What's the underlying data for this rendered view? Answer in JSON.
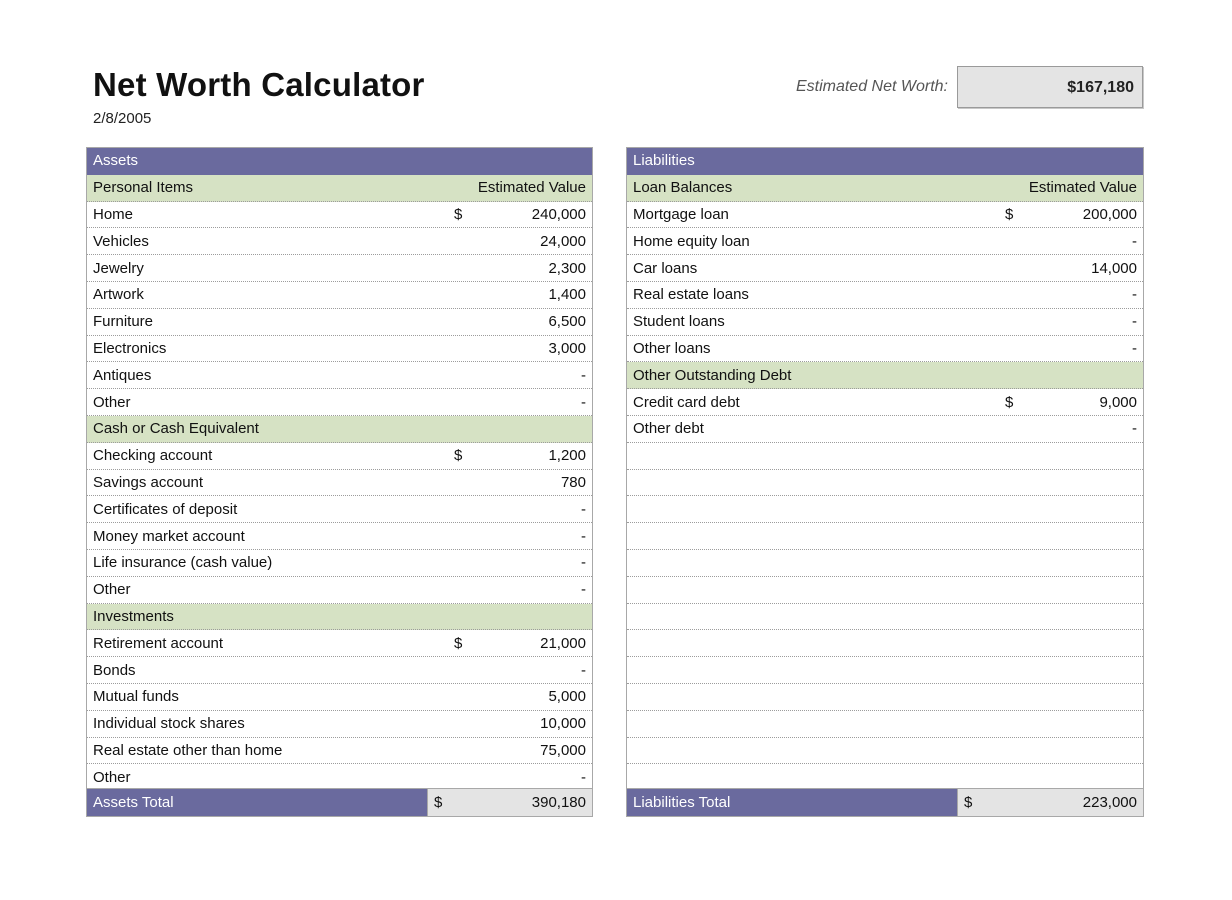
{
  "header": {
    "title": "Net Worth Calculator",
    "date": "2/8/2005",
    "net_worth_label": "Estimated Net Worth:",
    "net_worth_value": "$167,180"
  },
  "assets": {
    "header": "Assets",
    "sections": [
      {
        "title": "Personal Items",
        "column_header": "Estimated Value",
        "items": [
          {
            "label": "Home",
            "currency": "$",
            "value": "240,000"
          },
          {
            "label": "Vehicles",
            "currency": "",
            "value": "24,000"
          },
          {
            "label": "Jewelry",
            "currency": "",
            "value": "2,300"
          },
          {
            "label": "Artwork",
            "currency": "",
            "value": "1,400"
          },
          {
            "label": "Furniture",
            "currency": "",
            "value": "6,500"
          },
          {
            "label": "Electronics",
            "currency": "",
            "value": "3,000"
          },
          {
            "label": "Antiques",
            "currency": "",
            "value": "-"
          },
          {
            "label": "Other",
            "currency": "",
            "value": "-"
          }
        ]
      },
      {
        "title": "Cash or Cash Equivalent",
        "column_header": "",
        "items": [
          {
            "label": "Checking account",
            "currency": "$",
            "value": "1,200"
          },
          {
            "label": "Savings account",
            "currency": "",
            "value": "780"
          },
          {
            "label": "Certificates of deposit",
            "currency": "",
            "value": "-"
          },
          {
            "label": "Money market account",
            "currency": "",
            "value": "-"
          },
          {
            "label": "Life insurance (cash value)",
            "currency": "",
            "value": "-"
          },
          {
            "label": "Other",
            "currency": "",
            "value": "-"
          }
        ]
      },
      {
        "title": "Investments",
        "column_header": "",
        "items": [
          {
            "label": "Retirement account",
            "currency": "$",
            "value": "21,000"
          },
          {
            "label": "Bonds",
            "currency": "",
            "value": "-"
          },
          {
            "label": "Mutual funds",
            "currency": "",
            "value": "5,000"
          },
          {
            "label": "Individual stock shares",
            "currency": "",
            "value": "10,000"
          },
          {
            "label": "Real estate other than home",
            "currency": "",
            "value": "75,000"
          },
          {
            "label": "Other",
            "currency": "",
            "value": "-"
          }
        ]
      }
    ],
    "total_label": "Assets Total",
    "total_currency": "$",
    "total_value": "390,180"
  },
  "liabilities": {
    "header": "Liabilities",
    "sections": [
      {
        "title": "Loan Balances",
        "column_header": "Estimated Value",
        "items": [
          {
            "label": "Mortgage loan",
            "currency": "$",
            "value": "200,000"
          },
          {
            "label": "Home equity loan",
            "currency": "",
            "value": "-"
          },
          {
            "label": "Car loans",
            "currency": "",
            "value": "14,000"
          },
          {
            "label": "Real estate loans",
            "currency": "",
            "value": "-"
          },
          {
            "label": "Student loans",
            "currency": "",
            "value": "-"
          },
          {
            "label": "Other loans",
            "currency": "",
            "value": "-"
          }
        ]
      },
      {
        "title": "Other Outstanding Debt",
        "column_header": "",
        "items": [
          {
            "label": "Credit card debt",
            "currency": "$",
            "value": "9,000"
          },
          {
            "label": "Other debt",
            "currency": "",
            "value": "-"
          }
        ]
      }
    ],
    "total_label": "Liabilities Total",
    "total_currency": "$",
    "total_value": "223,000"
  }
}
